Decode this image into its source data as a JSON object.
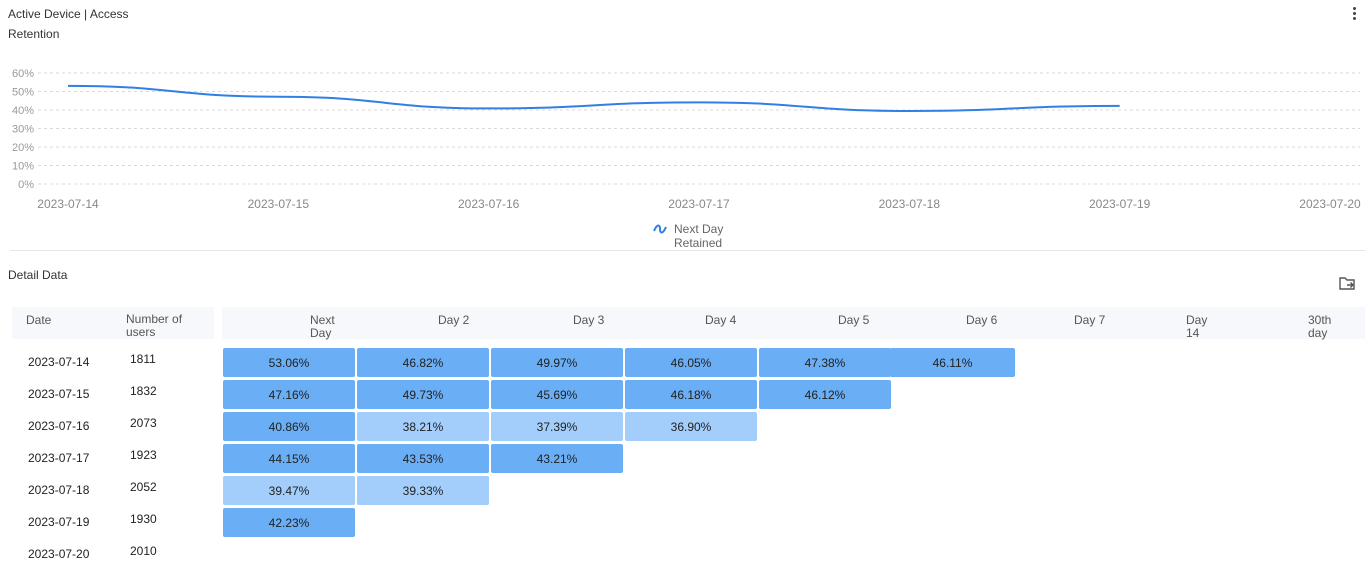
{
  "header": {
    "title": "Active Device | Access",
    "subtitle": "Retention",
    "more_icon": "more-vertical-icon"
  },
  "chart_data": {
    "type": "line",
    "y_ticks": [
      "60%",
      "50%",
      "40%",
      "30%",
      "20%",
      "10%",
      "0%"
    ],
    "ylim": [
      0,
      60
    ],
    "x_ticks": [
      "2023-07-14",
      "2023-07-15",
      "2023-07-16",
      "2023-07-17",
      "2023-07-18",
      "2023-07-19",
      "2023-07-20"
    ],
    "series": [
      {
        "name": "Next Day Retained",
        "color": "#2f80e4",
        "x": [
          "2023-07-14",
          "2023-07-15",
          "2023-07-16",
          "2023-07-17",
          "2023-07-18",
          "2023-07-19"
        ],
        "values": [
          53.06,
          47.16,
          40.86,
          44.15,
          39.47,
          42.23
        ]
      }
    ],
    "legend": "bottom-center",
    "grid": true
  },
  "legend": {
    "label": "Next Day Retained",
    "icon": "line-series-icon"
  },
  "detail": {
    "title": "Detail Data",
    "export_icon": "export-folder-icon",
    "columns": {
      "date": "Date",
      "users": "Number of users",
      "days": [
        "Next Day",
        "Day 2",
        "Day 3",
        "Day 4",
        "Day 5",
        "Day 6",
        "Day 7",
        "Day 14",
        "30th day"
      ]
    },
    "rows": [
      {
        "date": "2023-07-14",
        "users": "1811",
        "cells": [
          "53.06%",
          "46.82%",
          "49.97%",
          "46.05%",
          "47.38%",
          "46.11%"
        ]
      },
      {
        "date": "2023-07-15",
        "users": "1832",
        "cells": [
          "47.16%",
          "49.73%",
          "45.69%",
          "46.18%",
          "46.12%"
        ]
      },
      {
        "date": "2023-07-16",
        "users": "2073",
        "cells": [
          "40.86%",
          "38.21%",
          "37.39%",
          "36.90%"
        ]
      },
      {
        "date": "2023-07-17",
        "users": "1923",
        "cells": [
          "44.15%",
          "43.53%",
          "43.21%"
        ]
      },
      {
        "date": "2023-07-18",
        "users": "2052",
        "cells": [
          "39.47%",
          "39.33%"
        ]
      },
      {
        "date": "2023-07-19",
        "users": "1930",
        "cells": [
          "42.23%"
        ]
      },
      {
        "date": "2023-07-20",
        "users": "2010",
        "cells": []
      }
    ],
    "colors": {
      "high": "#6aaef5",
      "low": "#a3cdfa"
    }
  }
}
